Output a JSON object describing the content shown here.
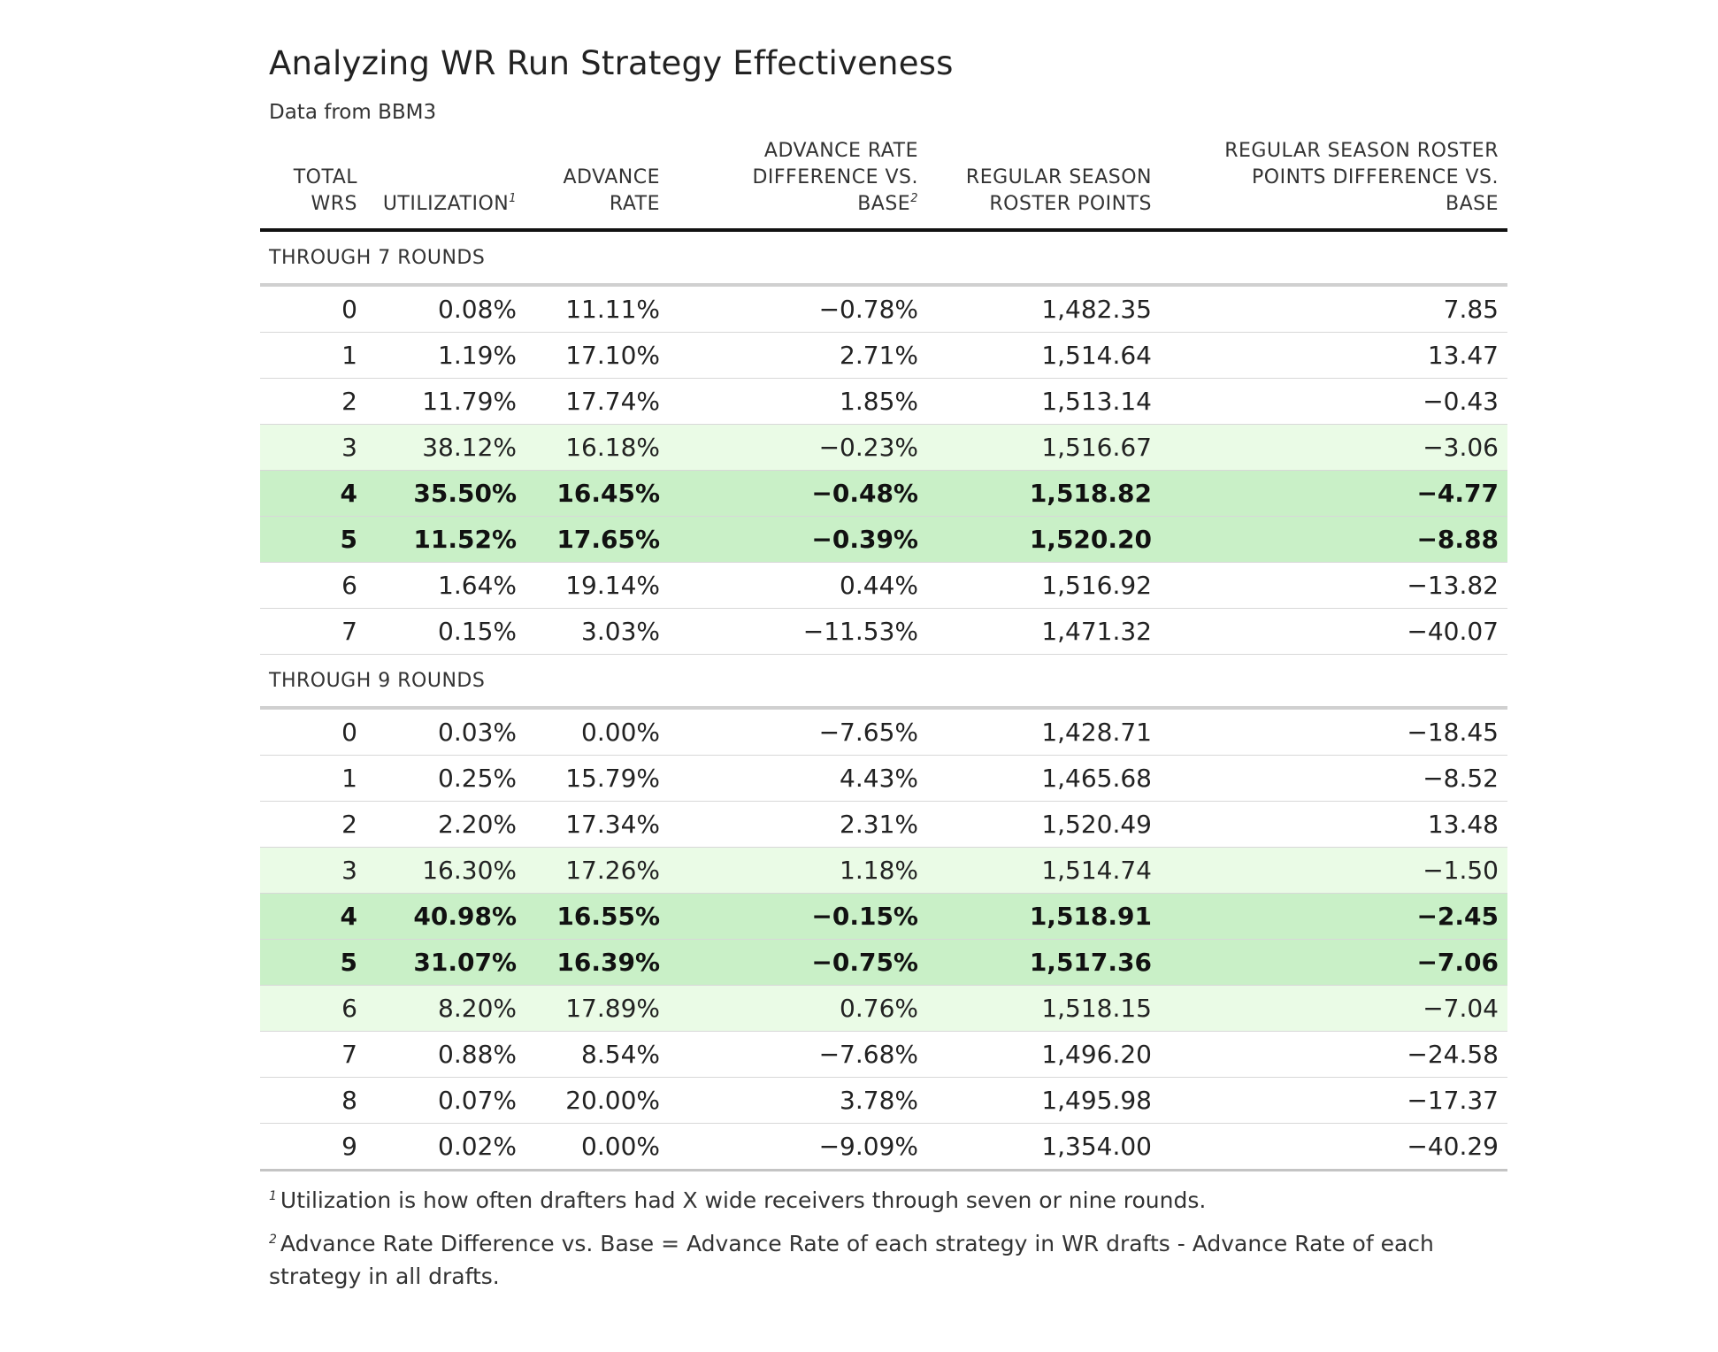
{
  "chart_data": {
    "type": "table",
    "title": "Analyzing WR Run Strategy Effectiveness",
    "subtitle": "Data from BBM3",
    "columns": [
      {
        "label": "TOTAL\nWRS",
        "sup": ""
      },
      {
        "label": "UTILIZATION",
        "sup": "1"
      },
      {
        "label": "ADVANCE\nRATE",
        "sup": ""
      },
      {
        "label": "ADVANCE RATE\nDIFFERENCE VS.\nBASE",
        "sup": "2"
      },
      {
        "label": "REGULAR SEASON\nROSTER POINTS",
        "sup": ""
      },
      {
        "label": "REGULAR SEASON ROSTER\nPOINTS DIFFERENCE VS.\nBASE",
        "sup": ""
      }
    ],
    "groups": [
      {
        "label": "THROUGH 7 ROUNDS",
        "rows": [
          {
            "cells": [
              "0",
              "0.08%",
              "11.11%",
              "−0.78%",
              "1,482.35",
              "7.85"
            ],
            "highlight": "none"
          },
          {
            "cells": [
              "1",
              "1.19%",
              "17.10%",
              "2.71%",
              "1,514.64",
              "13.47"
            ],
            "highlight": "none"
          },
          {
            "cells": [
              "2",
              "11.79%",
              "17.74%",
              "1.85%",
              "1,513.14",
              "−0.43"
            ],
            "highlight": "none"
          },
          {
            "cells": [
              "3",
              "38.12%",
              "16.18%",
              "−0.23%",
              "1,516.67",
              "−3.06"
            ],
            "highlight": "light"
          },
          {
            "cells": [
              "4",
              "35.50%",
              "16.45%",
              "−0.48%",
              "1,518.82",
              "−4.77"
            ],
            "highlight": "strong"
          },
          {
            "cells": [
              "5",
              "11.52%",
              "17.65%",
              "−0.39%",
              "1,520.20",
              "−8.88"
            ],
            "highlight": "strong"
          },
          {
            "cells": [
              "6",
              "1.64%",
              "19.14%",
              "0.44%",
              "1,516.92",
              "−13.82"
            ],
            "highlight": "none"
          },
          {
            "cells": [
              "7",
              "0.15%",
              "3.03%",
              "−11.53%",
              "1,471.32",
              "−40.07"
            ],
            "highlight": "none"
          }
        ]
      },
      {
        "label": "THROUGH 9 ROUNDS",
        "rows": [
          {
            "cells": [
              "0",
              "0.03%",
              "0.00%",
              "−7.65%",
              "1,428.71",
              "−18.45"
            ],
            "highlight": "none"
          },
          {
            "cells": [
              "1",
              "0.25%",
              "15.79%",
              "4.43%",
              "1,465.68",
              "−8.52"
            ],
            "highlight": "none"
          },
          {
            "cells": [
              "2",
              "2.20%",
              "17.34%",
              "2.31%",
              "1,520.49",
              "13.48"
            ],
            "highlight": "none"
          },
          {
            "cells": [
              "3",
              "16.30%",
              "17.26%",
              "1.18%",
              "1,514.74",
              "−1.50"
            ],
            "highlight": "light"
          },
          {
            "cells": [
              "4",
              "40.98%",
              "16.55%",
              "−0.15%",
              "1,518.91",
              "−2.45"
            ],
            "highlight": "strong"
          },
          {
            "cells": [
              "5",
              "31.07%",
              "16.39%",
              "−0.75%",
              "1,517.36",
              "−7.06"
            ],
            "highlight": "strong"
          },
          {
            "cells": [
              "6",
              "8.20%",
              "17.89%",
              "0.76%",
              "1,518.15",
              "−7.04"
            ],
            "highlight": "light"
          },
          {
            "cells": [
              "7",
              "0.88%",
              "8.54%",
              "−7.68%",
              "1,496.20",
              "−24.58"
            ],
            "highlight": "none"
          },
          {
            "cells": [
              "8",
              "0.07%",
              "20.00%",
              "3.78%",
              "1,495.98",
              "−17.37"
            ],
            "highlight": "none"
          },
          {
            "cells": [
              "9",
              "0.02%",
              "0.00%",
              "−9.09%",
              "1,354.00",
              "−40.29"
            ],
            "highlight": "none"
          }
        ]
      }
    ],
    "footnotes": [
      {
        "marker": "1",
        "text": "Utilization is how often drafters had X wide receivers through seven or nine rounds."
      },
      {
        "marker": "2",
        "text": "Advance Rate Difference vs. Base = Advance Rate of each strategy in WR drafts - Advance Rate of each strategy in all drafts."
      }
    ],
    "colors": {
      "highlight_light": "#eafbe6",
      "highlight_strong": "#c9f0c7",
      "header_rule": "#111111",
      "row_rule": "#d8d8d8"
    }
  }
}
